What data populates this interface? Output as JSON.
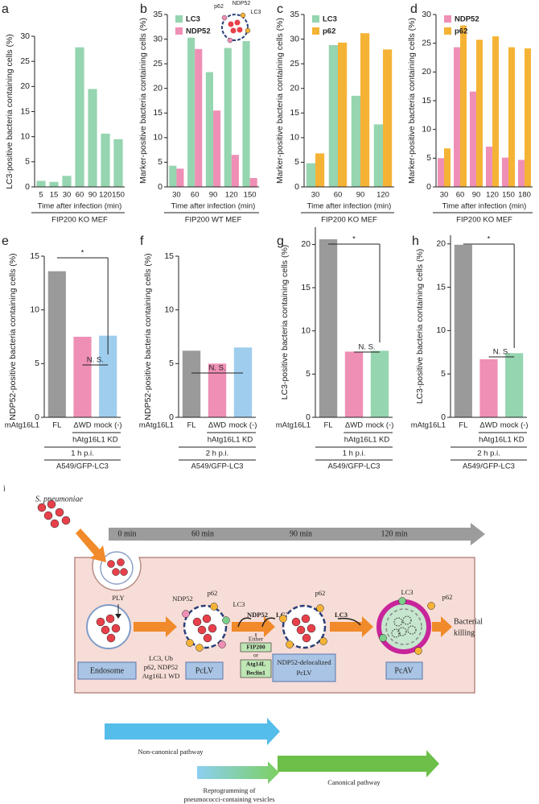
{
  "chart_data": [
    {
      "type": "bar",
      "label": "a",
      "ylabel": "LC3-positive bacteria containing cells (%)",
      "categories": [
        "5",
        "15",
        "30",
        "60",
        "90",
        "120",
        "150"
      ],
      "values": [
        1.2,
        1.0,
        2.2,
        27.8,
        19.5,
        10.6,
        9.5
      ],
      "color": "#95d5b0",
      "ylim": [
        0,
        30
      ],
      "yticks": [
        0,
        5,
        10,
        15,
        20,
        25,
        30
      ],
      "xlabel": "Time after infection (min)",
      "footer": "FIP200 KO MEF"
    },
    {
      "type": "bar",
      "label": "b",
      "ylabel": "Marker-positive bacteria containing cells (%)",
      "categories": [
        "30",
        "60",
        "90",
        "120",
        "150"
      ],
      "series": [
        {
          "name": "LC3",
          "color": "#95d5b0",
          "values": [
            4.3,
            30.3,
            23.3,
            28.2,
            29.6
          ]
        },
        {
          "name": "NDP52",
          "color": "#ef8fb6",
          "values": [
            3.7,
            28.0,
            15.5,
            6.5,
            1.8
          ]
        }
      ],
      "ylim": [
        0,
        35
      ],
      "yticks": [
        0,
        5,
        10,
        15,
        20,
        25,
        30,
        35
      ],
      "xlabel": "Time after infection (min)",
      "footer": "FIP200 WT MEF",
      "inset_labels": [
        "p62",
        "NDP52",
        "LC3"
      ]
    },
    {
      "type": "bar",
      "label": "c",
      "ylabel": "Marker-positive bacteria containing cells (%)",
      "categories": [
        "30",
        "60",
        "90",
        "120"
      ],
      "series": [
        {
          "name": "LC3",
          "color": "#95d5b0",
          "values": [
            4.8,
            28.8,
            18.5,
            12.7
          ]
        },
        {
          "name": "p62",
          "color": "#f5b335",
          "values": [
            6.8,
            29.3,
            31.2,
            27.9
          ]
        }
      ],
      "ylim": [
        0,
        35
      ],
      "yticks": [
        0,
        5,
        10,
        15,
        20,
        25,
        30,
        35
      ],
      "xlabel": "Time after infection (min)",
      "footer": "FIP200 KO MEF"
    },
    {
      "type": "bar",
      "label": "d",
      "ylabel": "Marker-positive bacteria containing cells (%)",
      "categories": [
        "30",
        "60",
        "90",
        "120",
        "150",
        "180"
      ],
      "series": [
        {
          "name": "NDP52",
          "color": "#ef8fb6",
          "values": [
            5.0,
            24.3,
            16.6,
            7.0,
            5.1,
            4.7
          ]
        },
        {
          "name": "p62",
          "color": "#f5b335",
          "values": [
            6.7,
            28.1,
            25.6,
            26.2,
            24.3,
            24.1
          ]
        }
      ],
      "ylim": [
        0,
        30
      ],
      "yticks": [
        0,
        5,
        10,
        15,
        20,
        25,
        30
      ],
      "xlabel": "Time after infection (min)",
      "footer": "FIP200 KO MEF"
    },
    {
      "type": "bar",
      "label": "e",
      "ylabel": "NDP52-positive bacteria containing cells (%)",
      "categories": [
        "FL",
        "ΔWD",
        "mock (-)"
      ],
      "values": [
        13.6,
        7.5,
        7.6
      ],
      "colors": [
        "#9a9a9a",
        "#ef8fb6",
        "#9fcdee"
      ],
      "ylim": [
        0,
        15
      ],
      "yticks": [
        0,
        5,
        10,
        15
      ],
      "row_label": "mAtg16L1",
      "group_label": "hAtg16L1 KD",
      "time_label": "1 h p.i.",
      "cell_label": "A549/GFP-LC3",
      "significance": [
        "*",
        "N. S."
      ]
    },
    {
      "type": "bar",
      "label": "f",
      "ylabel": "NDP52-positive bacteria containing cells (%)",
      "categories": [
        "FL",
        "ΔWD",
        "mock (-)"
      ],
      "values": [
        6.2,
        5.0,
        6.5
      ],
      "colors": [
        "#9a9a9a",
        "#ef8fb6",
        "#9fcdee"
      ],
      "ylim": [
        0,
        15
      ],
      "yticks": [
        0,
        5,
        10,
        15
      ],
      "row_label": "mAtg16L1",
      "group_label": "hAtg16L1 KD",
      "time_label": "2 h p.i.",
      "cell_label": "A549/GFP-LC3",
      "significance": [
        "N. S."
      ]
    },
    {
      "type": "bar",
      "label": "g",
      "ylabel": "LC3-positive bacteria containing cells (%)",
      "categories": [
        "FL",
        "ΔWD",
        "mock (-)"
      ],
      "values": [
        20.6,
        7.6,
        7.7
      ],
      "colors": [
        "#9a9a9a",
        "#ef8fb6",
        "#95d5b0"
      ],
      "ylim": [
        0,
        22
      ],
      "yticks": [
        0,
        5,
        10,
        15,
        20
      ],
      "row_label": "mAtg16L1",
      "group_label": "hAtg16L1 KD",
      "time_label": "1 h p.i.",
      "cell_label": "A549/GFP-LC3",
      "significance": [
        "*",
        "N. S."
      ]
    },
    {
      "type": "bar",
      "label": "h",
      "ylabel": "LC3-positive bacteria containing cells (%)",
      "categories": [
        "FL",
        "ΔWD",
        "mock (-)"
      ],
      "values": [
        19.9,
        6.7,
        7.4
      ],
      "colors": [
        "#9a9a9a",
        "#ef8fb6",
        "#95d5b0"
      ],
      "ylim": [
        0,
        21
      ],
      "yticks": [
        0,
        5,
        10,
        15,
        20
      ],
      "row_label": "mAtg16L1",
      "group_label": "hAtg16L1 KD",
      "time_label": "2 h p.i.",
      "cell_label": "A549/GFP-LC3",
      "significance": [
        "*",
        "N. S."
      ]
    }
  ],
  "diagram": {
    "label": "i",
    "organism": "S. pneumoniae",
    "timeline": [
      "0 min",
      "60 min",
      "90 min",
      "120 min"
    ],
    "trigger": "PLY",
    "recruited": [
      "LC3, Ub",
      "p62, NDP52",
      "Atg16L1 WD"
    ],
    "stages": {
      "endosome": "Endosome",
      "pclv": "PcLV",
      "delocalized": [
        "NDP52-delocalized",
        "PcLV"
      ],
      "pcav": "PcAV"
    },
    "pclv_markers": [
      "NDP52",
      "p62",
      "LC3"
    ],
    "lost": [
      "NDP52",
      "LC3"
    ],
    "requirement": [
      "Either",
      "FIP200",
      "or",
      "Atg14L",
      "Beclin1"
    ],
    "delocalized_marker": "p62",
    "gained": "LC3",
    "pcav_markers": [
      "LC3",
      "p62"
    ],
    "outcome": [
      "Bacterial",
      "killing"
    ],
    "pathways": {
      "non_canonical": "Non-canonical pathway",
      "canonical": "Canonical pathway",
      "reprogramming": [
        "Reprogramming of",
        "pneumococci-containing vesicles"
      ]
    }
  }
}
